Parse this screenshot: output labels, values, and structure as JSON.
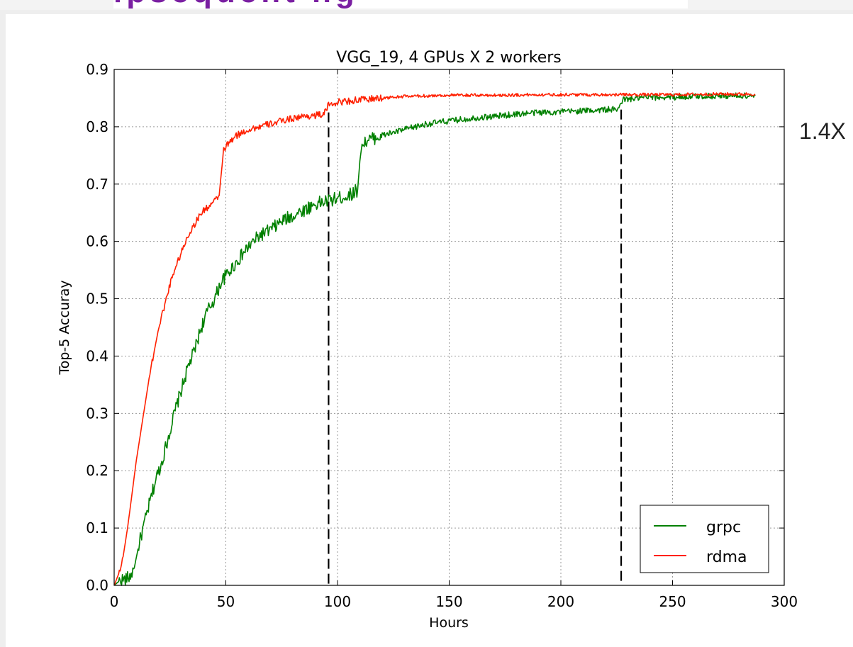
{
  "slide": {
    "heading_fragment": "ipsequent ng",
    "side_note": "1.4X"
  },
  "chart_data": {
    "type": "line",
    "title": "VGG_19, 4 GPUs X 2 workers",
    "xlabel": "Hours",
    "ylabel": "Top-5 Accuray",
    "xlim": [
      0,
      300
    ],
    "ylim": [
      0.0,
      0.9
    ],
    "xticks": [
      "0",
      "50",
      "100",
      "150",
      "200",
      "250",
      "300"
    ],
    "yticks": [
      "0.0",
      "0.1",
      "0.2",
      "0.3",
      "0.4",
      "0.5",
      "0.6",
      "0.7",
      "0.8",
      "0.9"
    ],
    "grid": true,
    "legend_position": "lower-right",
    "series": [
      {
        "name": "grpc",
        "color": "#008000",
        "x": [
          0,
          3,
          5,
          7,
          9,
          11,
          13,
          15,
          17,
          19,
          21,
          23,
          25,
          27,
          30,
          33,
          36,
          39,
          42,
          45,
          48,
          52,
          56,
          60,
          65,
          70,
          75,
          80,
          85,
          90,
          95,
          100,
          105,
          109,
          110,
          111,
          113,
          116,
          120,
          125,
          130,
          135,
          140,
          150,
          160,
          170,
          180,
          190,
          200,
          210,
          220,
          226,
          227,
          228,
          230,
          235,
          240,
          250,
          260,
          270,
          280,
          287
        ],
        "y": [
          0.0,
          0.01,
          0.01,
          0.015,
          0.03,
          0.07,
          0.1,
          0.13,
          0.16,
          0.19,
          0.21,
          0.24,
          0.27,
          0.3,
          0.34,
          0.38,
          0.41,
          0.45,
          0.48,
          0.5,
          0.53,
          0.55,
          0.57,
          0.59,
          0.61,
          0.62,
          0.635,
          0.645,
          0.655,
          0.665,
          0.67,
          0.675,
          0.68,
          0.69,
          0.74,
          0.77,
          0.775,
          0.78,
          0.785,
          0.79,
          0.795,
          0.8,
          0.805,
          0.81,
          0.815,
          0.818,
          0.822,
          0.825,
          0.826,
          0.828,
          0.83,
          0.83,
          0.845,
          0.847,
          0.848,
          0.85,
          0.851,
          0.852,
          0.853,
          0.854,
          0.854,
          0.854
        ],
        "noise": 0.012
      },
      {
        "name": "rdma",
        "color": "#ff2000",
        "x": [
          0,
          2,
          4,
          6,
          8,
          10,
          12,
          14,
          16,
          18,
          20,
          22,
          24,
          26,
          28,
          30,
          33,
          36,
          39,
          42,
          45,
          47,
          48,
          49,
          51,
          55,
          60,
          65,
          70,
          75,
          80,
          85,
          90,
          94,
          95,
          96,
          97,
          100,
          110,
          120,
          130,
          140,
          150,
          170,
          190,
          210,
          230,
          250,
          270,
          287
        ],
        "y": [
          0.0,
          0.02,
          0.05,
          0.1,
          0.16,
          0.22,
          0.27,
          0.32,
          0.37,
          0.41,
          0.45,
          0.48,
          0.51,
          0.54,
          0.56,
          0.58,
          0.61,
          0.63,
          0.65,
          0.66,
          0.67,
          0.68,
          0.72,
          0.76,
          0.77,
          0.785,
          0.795,
          0.8,
          0.805,
          0.81,
          0.815,
          0.818,
          0.82,
          0.822,
          0.83,
          0.838,
          0.84,
          0.843,
          0.847,
          0.85,
          0.853,
          0.854,
          0.855,
          0.855,
          0.856,
          0.856,
          0.856,
          0.856,
          0.857,
          0.857
        ],
        "noise": 0.006
      }
    ],
    "annotations": [
      {
        "type": "dashed-vline",
        "x": 96,
        "y_top": 0.825
      },
      {
        "type": "dashed-vline",
        "x": 227,
        "y_top": 0.83
      }
    ]
  }
}
